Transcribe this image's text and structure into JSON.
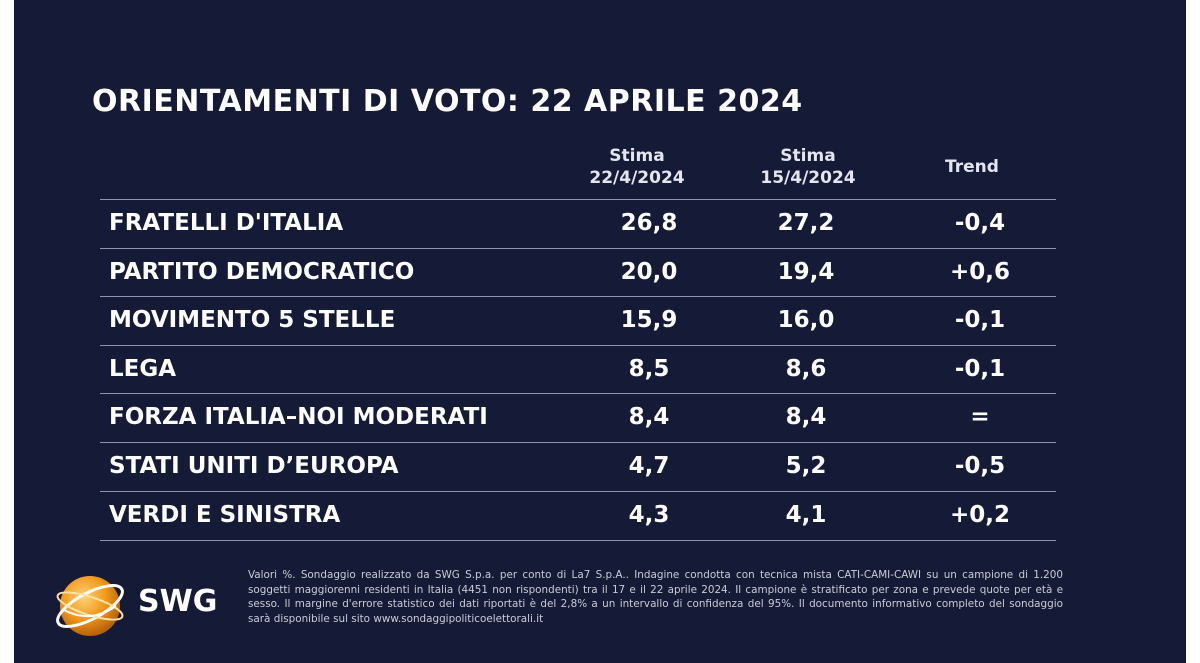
{
  "chart_data": {
    "type": "table",
    "title": "ORIENTAMENTI DI VOTO: 22 APRILE 2024",
    "columns": [
      {
        "line1": "Stima",
        "line2": "22/4/2024"
      },
      {
        "line1": "Stima",
        "line2": "15/4/2024"
      },
      {
        "line1": "Trend",
        "line2": ""
      }
    ],
    "rows": [
      {
        "party": "FRATELLI D'ITALIA",
        "current": "26,8",
        "previous": "27,2",
        "trend": "-0,4"
      },
      {
        "party": "PARTITO DEMOCRATICO",
        "current": "20,0",
        "previous": "19,4",
        "trend": "+0,6"
      },
      {
        "party": "MOVIMENTO 5 STELLE",
        "current": "15,9",
        "previous": "16,0",
        "trend": "-0,1"
      },
      {
        "party": "LEGA",
        "current": "8,5",
        "previous": "8,6",
        "trend": "-0,1"
      },
      {
        "party": "FORZA ITALIA–NOI MODERATI",
        "current": "8,4",
        "previous": "8,4",
        "trend": "="
      },
      {
        "party": "STATI UNITI D’EUROPA",
        "current": "4,7",
        "previous": "5,2",
        "trend": "-0,5"
      },
      {
        "party": "VERDI E SINISTRA",
        "current": "4,3",
        "previous": "4,1",
        "trend": "+0,2"
      }
    ]
  },
  "logo": {
    "text": "SWG",
    "icon": "globe-icon"
  },
  "footnote": "Valori %. Sondaggio realizzato da SWG S.p.a. per conto di La7 S.p.A.. Indagine condotta con tecnica mista CATI-CAMI-CAWI su un campione di 1.200 soggetti maggiorenni residenti in Italia (4451 non rispondenti) tra il 17 e il 22 aprile 2024. Il campione è stratificato per zona e prevede quote per età e sesso. Il margine d'errore statistico dei dati riportati è del 2,8% a un intervallo di confidenza del 95%. Il documento informativo completo del sondaggio sarà disponibile sul sito www.sondaggipoliticoelettorali.it",
  "colors": {
    "background": "#151b36",
    "text": "#ffffff",
    "rule": "#8c93ad",
    "logo_orange": "#f29a1c"
  }
}
